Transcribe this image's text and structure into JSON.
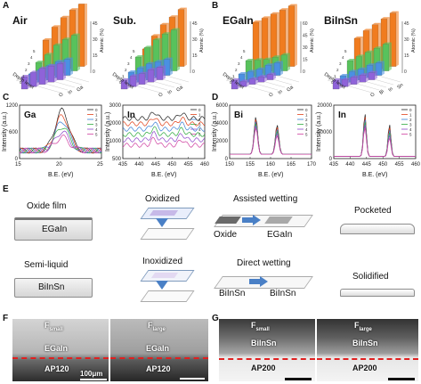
{
  "panels": {
    "A": "A",
    "B": "B",
    "C": "C",
    "D": "D",
    "E": "E",
    "F": "F",
    "G": "G"
  },
  "bar3d": {
    "common": {
      "depth_label": "Depth level",
      "z_label": "Atomic (%)",
      "depth_ticks": [
        "0",
        "1",
        "2",
        "3",
        "4",
        "5"
      ]
    },
    "plots": [
      {
        "title": "Air",
        "z_ticks": [
          "0",
          "15",
          "30",
          "45"
        ],
        "elements": [
          "O",
          "In",
          "Ga"
        ],
        "colors": [
          "#8f63d9",
          "#4a90e2",
          "#58c25c",
          "#f07c1f"
        ]
      },
      {
        "title": "Sub.",
        "z_ticks": [
          "0",
          "15",
          "30",
          "45"
        ],
        "elements": [
          "O",
          "In",
          "Ga"
        ],
        "colors": [
          "#8f63d9",
          "#4a90e2",
          "#58c25c",
          "#f07c1f"
        ]
      },
      {
        "title": "EGaIn",
        "z_ticks": [
          "0",
          "15",
          "30",
          "45",
          "60"
        ],
        "elements": [
          "O",
          "In",
          "Ga"
        ],
        "colors": [
          "#8f63d9",
          "#4a90e2",
          "#58c25c",
          "#f07c1f"
        ]
      },
      {
        "title": "BiInSn",
        "z_ticks": [
          "0",
          "15",
          "30",
          "45"
        ],
        "elements": [
          "O",
          "Bi",
          "In",
          "Sn"
        ],
        "colors": [
          "#8f63d9",
          "#4a90e2",
          "#58c25c",
          "#f07c1f"
        ]
      }
    ]
  },
  "spectra": {
    "ylabel": "Intensity (a.u.)",
    "xlabel": "B.E. (eV)",
    "legend": [
      "0",
      "1",
      "2",
      "3",
      "4",
      "5"
    ],
    "legend_colors": [
      "#222222",
      "#e0401a",
      "#3a7fd5",
      "#2eaa3e",
      "#8b46c9",
      "#d040a0"
    ],
    "plots": [
      {
        "title": "Ga",
        "xticks": [
          "15",
          "20",
          "25"
        ],
        "yticks": [
          "0",
          "600",
          "1200"
        ]
      },
      {
        "title": "In",
        "xticks": [
          "435",
          "440",
          "445",
          "450",
          "455",
          "460"
        ],
        "yticks": [
          "500",
          "1000",
          "2000",
          "3000"
        ]
      },
      {
        "title": "Bi",
        "xticks": [
          "150",
          "155",
          "160",
          "165",
          "170"
        ],
        "yticks": [
          "0",
          "2000",
          "4000",
          "6000"
        ]
      },
      {
        "title": "In",
        "xticks": [
          "435",
          "440",
          "445",
          "450",
          "455",
          "460"
        ],
        "yticks": [
          "0",
          "10000",
          "20000"
        ]
      }
    ]
  },
  "schematic": {
    "row1": {
      "left_title": "Oxide film",
      "box": "EGaIn",
      "stage1": "Oxidized",
      "stage2": "Assisted wetting",
      "s2_left": "Oxide",
      "s2_right": "EGaIn",
      "stage3": "Pocketed"
    },
    "row2": {
      "left_title": "Semi-liquid",
      "box": "BiInSn",
      "stage1": "Inoxidized",
      "stage2": "Direct wetting",
      "s2_left": "BiInSn",
      "s2_right": "BiInSn",
      "stage3": "Solidified"
    }
  },
  "micrographs": {
    "F": [
      {
        "f_label": "F",
        "f_sub": "small",
        "metal": "EGaIn",
        "substrate": "AP120",
        "scale": "100μm"
      },
      {
        "f_label": "F",
        "f_sub": "large",
        "metal": "EGaIn",
        "substrate": "AP120"
      }
    ],
    "G": [
      {
        "f_label": "F",
        "f_sub": "small",
        "metal": "BiInSn",
        "substrate": "AP200"
      },
      {
        "f_label": "F",
        "f_sub": "large",
        "metal": "BiInSn",
        "substrate": "AP200"
      }
    ]
  }
}
